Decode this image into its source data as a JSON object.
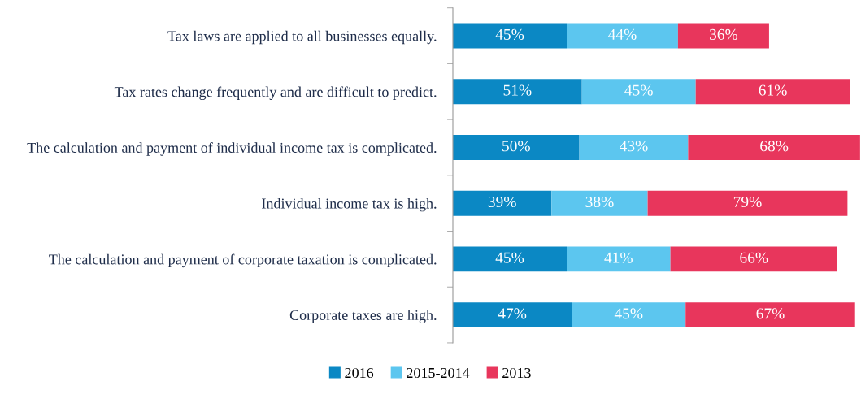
{
  "chart_data": {
    "type": "bar",
    "orientation": "horizontal",
    "stacked": true,
    "legend": "bottom",
    "grid": false,
    "categories": [
      "Tax laws are applied to all businesses equally.",
      "Tax rates change frequently and are difficult to predict.",
      "The calculation and payment of individual income tax is complicated.",
      "Individual income tax is high.",
      "The calculation and payment of corporate taxation is complicated.",
      "Corporate taxes are high."
    ],
    "series": [
      {
        "name": "2016",
        "color": "#0b88c4",
        "values": [
          45,
          51,
          50,
          39,
          45,
          47
        ],
        "value_labels": [
          "45%",
          "51%",
          "50%",
          "39%",
          "45%",
          "47%"
        ]
      },
      {
        "name": "2015-2014",
        "color": "#5cc6ef",
        "values": [
          44,
          45,
          43,
          38,
          41,
          45
        ],
        "value_labels": [
          "44%",
          "45%",
          "43%",
          "38%",
          "41%",
          "45%"
        ]
      },
      {
        "name": "2013",
        "color": "#e8365c",
        "values": [
          36,
          61,
          68,
          79,
          66,
          67
        ],
        "value_labels": [
          "36%",
          "61%",
          "68%",
          "79%",
          "66%",
          "67%"
        ]
      }
    ]
  }
}
